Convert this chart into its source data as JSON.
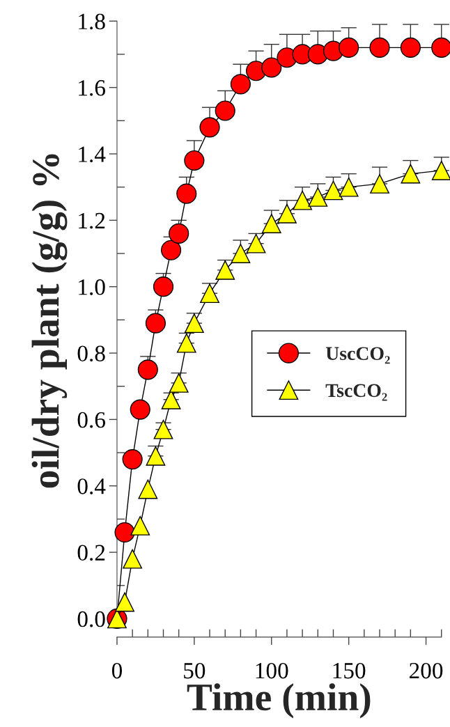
{
  "chart_data": {
    "type": "line",
    "xlabel": "Time (min)",
    "ylabel": "oil/dry plant (g/g) %",
    "xlim": [
      0,
      210
    ],
    "xticks": [
      0,
      50,
      100,
      150,
      200
    ],
    "ylim": [
      0,
      1.8
    ],
    "yticks": [
      {
        "value": 0,
        "label": "0.0"
      },
      0.2,
      0.4,
      0.6,
      0.8,
      {
        "value": 1,
        "label": "1.0"
      },
      1.2,
      1.4,
      1.6,
      1.8
    ],
    "grid": false,
    "legend": "right",
    "line_style": "solid",
    "series": [
      {
        "name": "UscCO₂",
        "color": "#ff0000",
        "marker": "circle",
        "x": [
          0,
          5,
          10,
          15,
          20,
          25,
          30,
          35,
          40,
          45,
          50,
          60,
          70,
          80,
          90,
          100,
          110,
          120,
          130,
          140,
          150,
          170,
          190,
          210
        ],
        "values": [
          0,
          0.26,
          0.48,
          0.63,
          0.75,
          0.89,
          1.0,
          1.11,
          1.16,
          1.28,
          1.38,
          1.48,
          1.53,
          1.61,
          1.65,
          1.66,
          1.69,
          1.7,
          1.7,
          1.71,
          1.72,
          1.72,
          1.72,
          1.72
        ],
        "errors": [
          null,
          null,
          null,
          null,
          [
            0.75,
            0.79
          ],
          [
            0.89,
            0.93
          ],
          [
            1.0,
            1.04
          ],
          [
            1.11,
            1.15
          ],
          [
            1.16,
            1.2
          ],
          [
            1.28,
            1.33
          ],
          [
            1.38,
            1.44
          ],
          [
            1.48,
            1.54
          ],
          [
            1.53,
            1.59
          ],
          [
            1.61,
            1.67
          ],
          [
            1.65,
            1.71
          ],
          [
            1.66,
            1.73
          ],
          [
            1.69,
            1.76
          ],
          [
            1.7,
            1.76
          ],
          [
            1.7,
            1.77
          ],
          [
            1.71,
            1.77
          ],
          [
            1.72,
            1.78
          ],
          [
            1.72,
            1.79
          ],
          [
            1.72,
            1.79
          ],
          [
            1.72,
            1.79
          ]
        ]
      },
      {
        "name": "TscCO₂",
        "color": "#ffff00",
        "marker": "triangle",
        "x": [
          0,
          5,
          10,
          15,
          20,
          25,
          30,
          35,
          40,
          45,
          50,
          60,
          70,
          80,
          90,
          100,
          110,
          120,
          130,
          140,
          150,
          170,
          190,
          210
        ],
        "values": [
          0,
          0.05,
          0.18,
          0.28,
          0.39,
          0.49,
          0.57,
          0.66,
          0.71,
          0.83,
          0.89,
          0.98,
          1.05,
          1.1,
          1.13,
          1.19,
          1.22,
          1.26,
          1.27,
          1.29,
          1.3,
          1.31,
          1.34,
          1.35
        ],
        "errors": [
          null,
          null,
          null,
          null,
          null,
          [
            0.49,
            0.52
          ],
          [
            0.57,
            0.59
          ],
          [
            0.66,
            0.68
          ],
          [
            0.71,
            0.74
          ],
          [
            0.83,
            0.86
          ],
          [
            0.89,
            0.92
          ],
          [
            0.98,
            1.01
          ],
          [
            1.05,
            1.08
          ],
          [
            1.1,
            1.14
          ],
          [
            1.13,
            1.16
          ],
          [
            1.19,
            1.23
          ],
          [
            1.22,
            1.26
          ],
          [
            1.26,
            1.3
          ],
          [
            1.27,
            1.31
          ],
          [
            1.29,
            1.33
          ],
          [
            1.3,
            1.34
          ],
          [
            1.31,
            1.36
          ],
          [
            1.34,
            1.38
          ],
          [
            1.35,
            1.39
          ]
        ]
      }
    ]
  }
}
